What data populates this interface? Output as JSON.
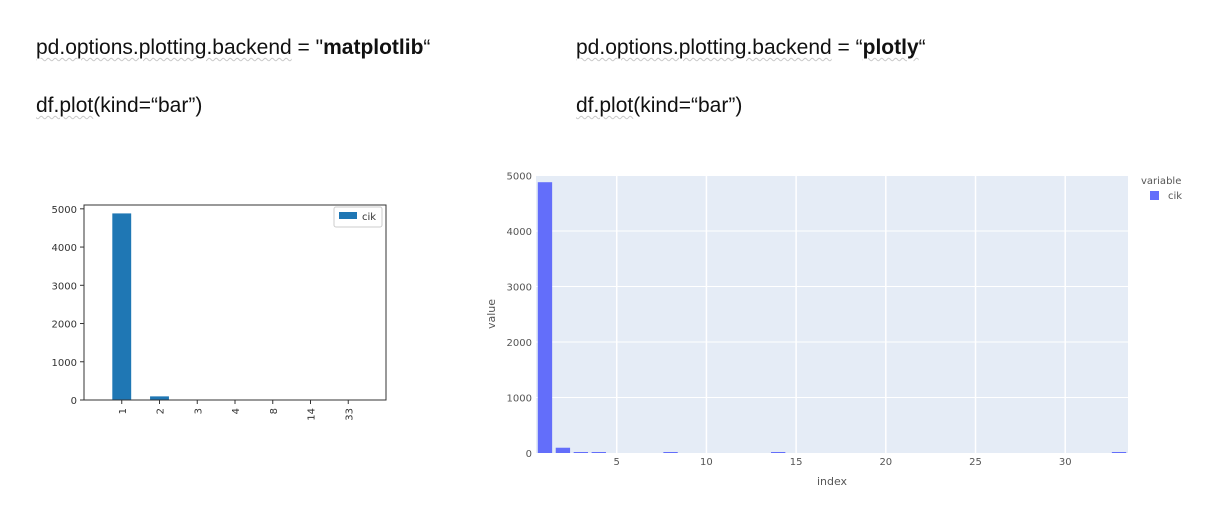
{
  "snippets": {
    "left": {
      "line1_prefix": "pd.options.plotting.backend",
      "line1_mid": " = \"",
      "line1_value": "matplotlib",
      "line1_suffix": "“",
      "line2_fn": "df.plot",
      "line2_rest": "(kind=“bar”)"
    },
    "right": {
      "line1_prefix": "pd.options.plotting.backend",
      "line1_mid": " = “",
      "line1_value": "plotly",
      "line1_suffix": "“",
      "line2_fn": "df.plot",
      "line2_rest": "(kind=“bar”)"
    }
  },
  "chart_data": [
    {
      "type": "bar",
      "backend": "matplotlib",
      "categories": [
        "1",
        "2",
        "3",
        "4",
        "8",
        "14",
        "33"
      ],
      "series": [
        {
          "name": "cik",
          "values": [
            4880,
            95,
            4,
            2,
            1,
            1,
            1
          ]
        }
      ],
      "yticks": [
        "0",
        "1000",
        "2000",
        "3000",
        "4000",
        "5000"
      ],
      "ylim": [
        0,
        5100
      ],
      "xlabel": "",
      "ylabel": "",
      "legend": "top-right",
      "grid": false,
      "bar_color": "#1f77b4"
    },
    {
      "type": "bar",
      "backend": "plotly",
      "x": [
        1,
        2,
        3,
        4,
        8,
        14,
        33
      ],
      "series": [
        {
          "name": "cik",
          "values": [
            4880,
            95,
            4,
            2,
            1,
            1,
            1
          ]
        }
      ],
      "xlabel": "index",
      "ylabel": "value",
      "legend_title": "variable",
      "legend": "top-right",
      "xticks": [
        "5",
        "10",
        "15",
        "20",
        "25",
        "30"
      ],
      "yticks": [
        "0",
        "1000",
        "2000",
        "3000",
        "4000",
        "5000"
      ],
      "xlim": [
        0.5,
        33.5
      ],
      "ylim": [
        0,
        5010
      ],
      "grid": true,
      "bar_color": "#636efa",
      "plot_bg": "#e5ecf6"
    }
  ]
}
